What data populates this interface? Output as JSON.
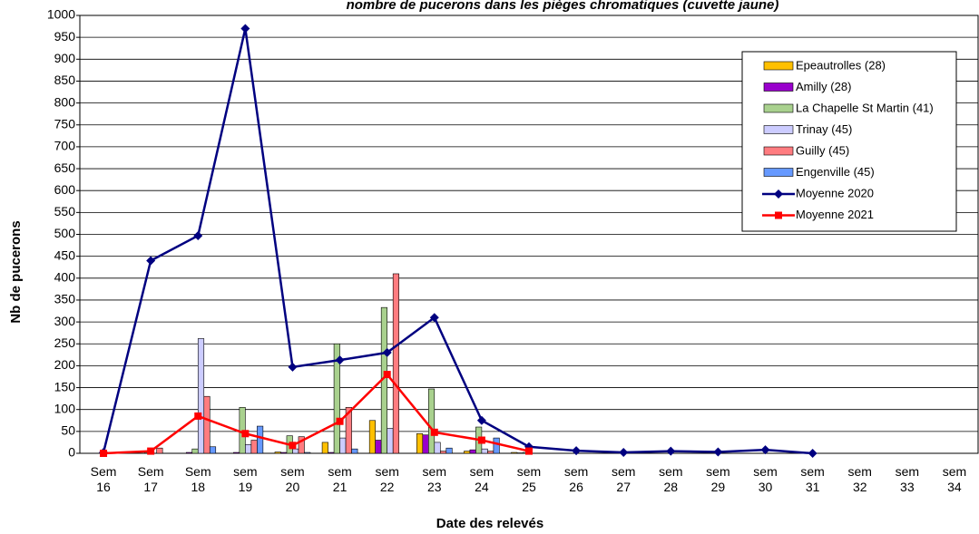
{
  "chart_data": {
    "type": "bar",
    "title": "nombre de pucerons dans les pièges chromatiques (cuvette jaune)",
    "x_label": "Date des relevés",
    "y_label": "Nb de pucerons",
    "categories": [
      "Sem 16",
      "Sem 17",
      "Sem 18",
      "sem 19",
      "sem 20",
      "sem 21",
      "sem 22",
      "sem 23",
      "sem 24",
      "sem 25",
      "sem 26",
      "sem 27",
      "sem 28",
      "sem 29",
      "sem 30",
      "sem 31",
      "sem 32",
      "sem 33",
      "sem 34"
    ],
    "ylim": [
      0,
      1000
    ],
    "yticks": [
      0,
      50,
      100,
      150,
      200,
      250,
      300,
      350,
      400,
      450,
      500,
      550,
      600,
      650,
      700,
      750,
      800,
      850,
      900,
      950,
      1000
    ],
    "grid": true,
    "legend": "upper right",
    "series": [
      {
        "name": "Epeautrolles (28)",
        "type": "bar",
        "color": "#ffc000",
        "values": [
          0,
          0,
          0,
          0,
          3,
          25,
          75,
          45,
          5,
          2,
          0,
          0,
          0,
          0,
          0,
          0,
          0,
          0,
          0
        ]
      },
      {
        "name": "Amilly (28)",
        "type": "bar",
        "color": "#9900cc",
        "values": [
          0,
          0,
          2,
          2,
          2,
          2,
          30,
          42,
          8,
          1,
          0,
          0,
          0,
          0,
          0,
          0,
          0,
          0,
          0
        ]
      },
      {
        "name": "La Chapelle St Martin (41)",
        "type": "bar",
        "color": "#a9d18e",
        "values": [
          0,
          2,
          10,
          105,
          40,
          250,
          333,
          147,
          60,
          2,
          0,
          0,
          0,
          0,
          0,
          0,
          0,
          0,
          0
        ]
      },
      {
        "name": "Trinay (45)",
        "type": "bar",
        "color": "#ccccff",
        "values": [
          0,
          0,
          262,
          20,
          10,
          35,
          57,
          25,
          10,
          0,
          0,
          0,
          0,
          0,
          0,
          0,
          0,
          0,
          0
        ]
      },
      {
        "name": "Guilly (45)",
        "type": "bar",
        "color": "#ff7c80",
        "values": [
          2,
          12,
          130,
          30,
          38,
          105,
          410,
          5,
          5,
          0,
          0,
          0,
          0,
          0,
          0,
          0,
          0,
          0,
          0
        ]
      },
      {
        "name": "Engenville (45)",
        "type": "bar",
        "color": "#6699ff",
        "values": [
          0,
          0,
          15,
          62,
          2,
          10,
          0,
          12,
          35,
          0,
          0,
          0,
          0,
          0,
          0,
          0,
          0,
          0,
          0
        ]
      },
      {
        "name": "Moyenne 2020",
        "type": "line",
        "marker": "diamond",
        "color": "#000080",
        "values": [
          2,
          440,
          497,
          970,
          197,
          213,
          230,
          310,
          75,
          15,
          6,
          2,
          5,
          3,
          8,
          0,
          null,
          null,
          null
        ]
      },
      {
        "name": "Moyenne 2021",
        "type": "line",
        "marker": "square",
        "color": "#ff0000",
        "values": [
          0,
          5,
          85,
          45,
          18,
          73,
          180,
          48,
          30,
          5,
          null,
          null,
          null,
          null,
          null,
          null,
          null,
          null,
          null
        ]
      }
    ]
  }
}
